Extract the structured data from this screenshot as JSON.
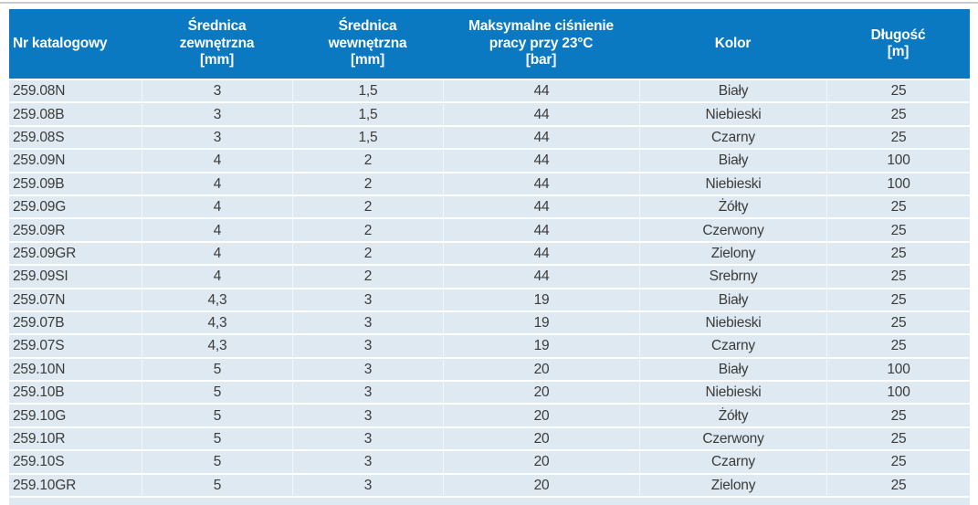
{
  "page": {
    "background": "#ffffff",
    "top_rule_color": "#cacaca"
  },
  "table": {
    "header_bg": "#0b79c1",
    "header_text_color": "#ffffff",
    "row_bg": "#dfe9f1",
    "row_text_color": "#3b3b3a",
    "row_separator_color": "#ffffff",
    "columns": [
      {
        "id": "nr-katalogowy",
        "label": "Nr katalogowy",
        "align": "left"
      },
      {
        "id": "srednica-zewnetrzna",
        "label": "Średnica\nzewnętrzna\n[mm]",
        "align": "center"
      },
      {
        "id": "srednica-wewnetrzna",
        "label": "Średnica\nwewnętrzna\n[mm]",
        "align": "center"
      },
      {
        "id": "maksymalne-cisnienie",
        "label": "Maksymalne ciśnienie\npracy przy 23°C\n[bar]",
        "align": "center"
      },
      {
        "id": "kolor",
        "label": "Kolor",
        "align": "center"
      },
      {
        "id": "dlugosc",
        "label": "Długość\n[m]",
        "align": "center"
      }
    ],
    "rows": [
      [
        "259.08N",
        "3",
        "1,5",
        "44",
        "Biały",
        "25"
      ],
      [
        "259.08B",
        "3",
        "1,5",
        "44",
        "Niebieski",
        "25"
      ],
      [
        "259.08S",
        "3",
        "1,5",
        "44",
        "Czarny",
        "25"
      ],
      [
        "259.09N",
        "4",
        "2",
        "44",
        "Biały",
        "100"
      ],
      [
        "259.09B",
        "4",
        "2",
        "44",
        "Niebieski",
        "100"
      ],
      [
        "259.09G",
        "4",
        "2",
        "44",
        "Żółty",
        "25"
      ],
      [
        "259.09R",
        "4",
        "2",
        "44",
        "Czerwony",
        "25"
      ],
      [
        "259.09GR",
        "4",
        "2",
        "44",
        "Zielony",
        "25"
      ],
      [
        "259.09SI",
        "4",
        "2",
        "44",
        "Srebrny",
        "25"
      ],
      [
        "259.07N",
        "4,3",
        "3",
        "19",
        "Biały",
        "25"
      ],
      [
        "259.07B",
        "4,3",
        "3",
        "19",
        "Niebieski",
        "25"
      ],
      [
        "259.07S",
        "4,3",
        "3",
        "19",
        "Czarny",
        "25"
      ],
      [
        "259.10N",
        "5",
        "3",
        "20",
        "Biały",
        "100"
      ],
      [
        "259.10B",
        "5",
        "3",
        "20",
        "Niebieski",
        "100"
      ],
      [
        "259.10G",
        "5",
        "3",
        "20",
        "Żółty",
        "25"
      ],
      [
        "259.10R",
        "5",
        "3",
        "20",
        "Czerwony",
        "25"
      ],
      [
        "259.10S",
        "5",
        "3",
        "20",
        "Czarny",
        "25"
      ],
      [
        "259.10GR",
        "5",
        "3",
        "20",
        "Zielony",
        "25"
      ]
    ]
  }
}
